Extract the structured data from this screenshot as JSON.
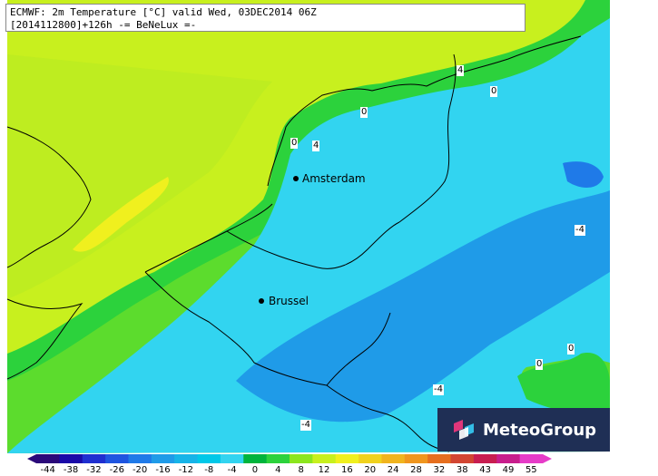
{
  "title": {
    "line1": "ECMWF: 2m Temperature [°C] valid Wed, 03DEC2014 06Z",
    "line2": "[2014112800]+126h -= BeNeLux =-"
  },
  "cities": [
    {
      "name": "Amsterdam"
    },
    {
      "name": "Brussel"
    }
  ],
  "contour_labels": [
    "0",
    "4",
    "0",
    "4",
    "0",
    "0",
    "-4",
    "0",
    "0",
    "-4",
    "-4"
  ],
  "logo": {
    "text": "MeteoGroup",
    "icon": "meteogroup-logo-icon",
    "background": "#1f2f55"
  },
  "colorbar": {
    "ticks": [
      "-44",
      "-38",
      "-32",
      "-26",
      "-20",
      "-16",
      "-12",
      "-8",
      "-4",
      "0",
      "4",
      "8",
      "12",
      "16",
      "20",
      "24",
      "28",
      "32",
      "38",
      "43",
      "49",
      "55"
    ],
    "colors": [
      "#2b0a7a",
      "#1a0aa8",
      "#1f2fd0",
      "#1f55e0",
      "#1f7ae8",
      "#1f9be8",
      "#16b4e8",
      "#00c8e8",
      "#32d4f0",
      "#00b43c",
      "#2cd23c",
      "#8ce61e",
      "#c8f01e",
      "#f0f01e",
      "#f0d21e",
      "#f0b41e",
      "#f0961e",
      "#e66e1e",
      "#d24632",
      "#c81e50",
      "#c81e8c",
      "#e63cc8"
    ]
  },
  "map_colors": {
    "sea": "#c8f01e",
    "land_cold": "#32d4f0",
    "coast_warm": "#2cd23c",
    "coldest": "#1f9be8",
    "warm_spot": "#f0f01e"
  }
}
